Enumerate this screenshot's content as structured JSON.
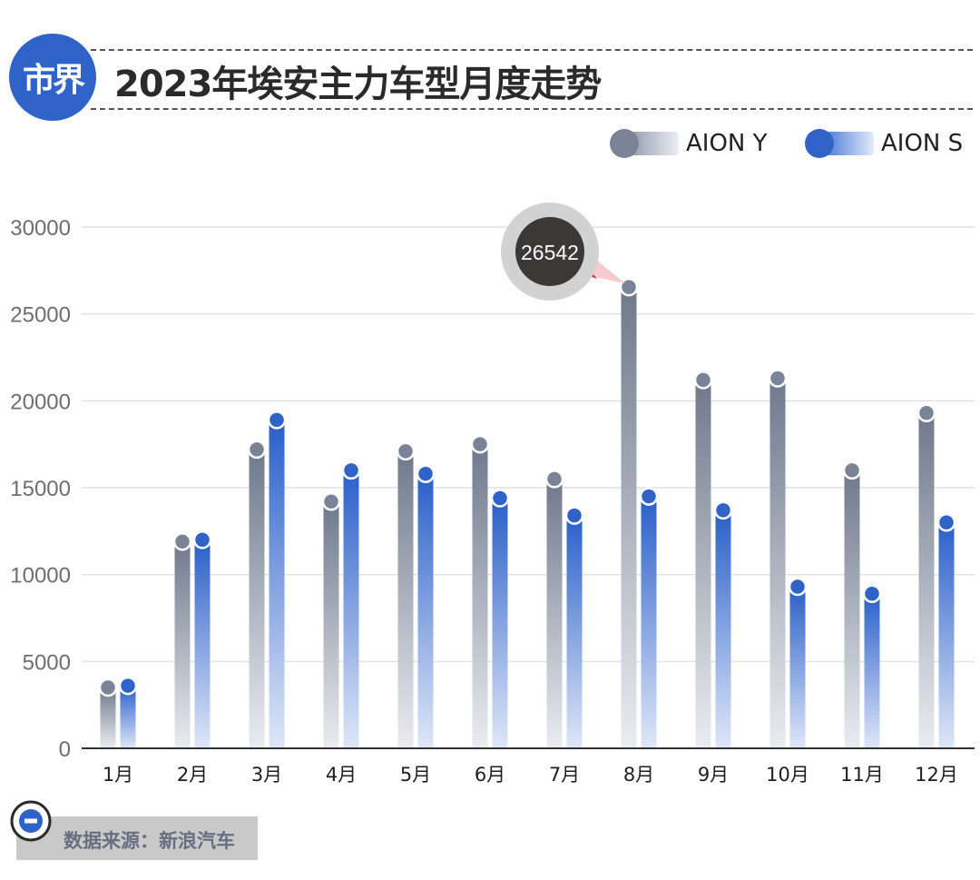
{
  "header": {
    "logo_text": "市界",
    "title": "2023年埃安主力车型月度走势"
  },
  "legend": [
    {
      "name": "AION Y",
      "color": "#7a8496"
    },
    {
      "name": "AION S",
      "color": "#2f63c8"
    }
  ],
  "chart_data": {
    "type": "bar",
    "title": "2023年埃安主力车型月度走势",
    "categories": [
      "1月",
      "2月",
      "3月",
      "4月",
      "5月",
      "6月",
      "7月",
      "8月",
      "9月",
      "10月",
      "11月",
      "12月"
    ],
    "series": [
      {
        "name": "AION Y",
        "values": [
          3500,
          11900,
          17200,
          14200,
          17100,
          17500,
          15500,
          26542,
          21200,
          21300,
          16000,
          19300
        ]
      },
      {
        "name": "AION S",
        "values": [
          3600,
          12000,
          18900,
          16000,
          15800,
          14400,
          13400,
          14500,
          13700,
          9300,
          8900,
          13000
        ]
      }
    ],
    "ylim": [
      0,
      30000
    ],
    "yticks": [
      0,
      5000,
      10000,
      15000,
      20000,
      25000,
      30000
    ],
    "grid": true,
    "legend_position": "top-right",
    "annotation": {
      "label": "26542",
      "category": "8月",
      "series": "AION Y"
    }
  },
  "footer": {
    "source": "数据来源：新浪汽车"
  }
}
